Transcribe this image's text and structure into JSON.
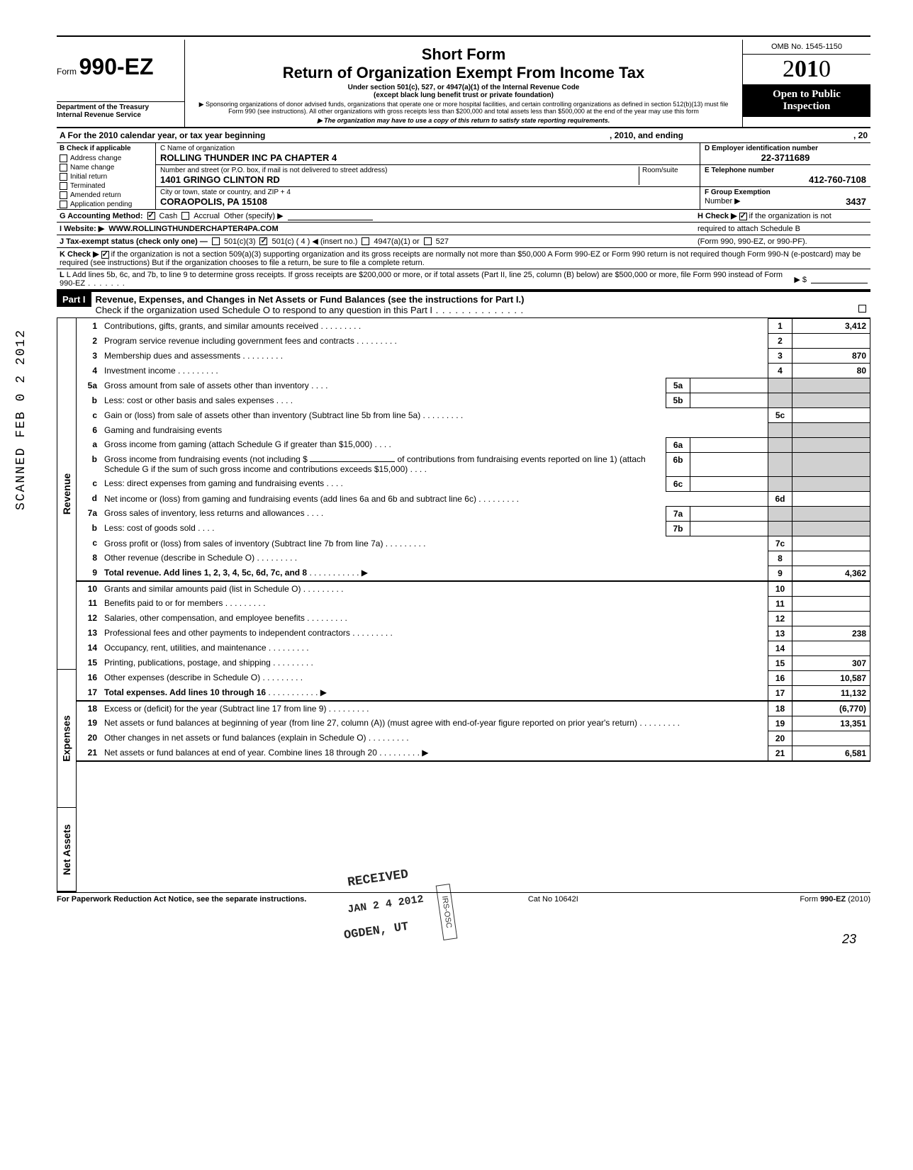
{
  "header": {
    "form_prefix": "Form",
    "form_number": "990-EZ",
    "dept1": "Department of the Treasury",
    "dept2": "Internal Revenue Service",
    "title1": "Short Form",
    "title2": "Return of Organization Exempt From Income Tax",
    "subtitle": "Under section 501(c), 527, or 4947(a)(1) of the Internal Revenue Code",
    "subtitle2": "(except black lung benefit trust or private foundation)",
    "note1": "▶ Sponsoring organizations of donor advised funds, organizations that operate one or more hospital facilities, and certain controlling organizations as defined in section 512(b)(13) must file Form 990 (see instructions). All other organizations with gross receipts less than $200,000 and total assets less than $500,000 at the end of the year may use this form",
    "note2": "▶ The organization may have to use a copy of this return to satisfy state reporting requirements.",
    "omb": "OMB No. 1545-1150",
    "year_prefix": "2",
    "year_bold": "01",
    "year_suffix": "0",
    "open_public1": "Open to Public",
    "open_public2": "Inspection"
  },
  "section_a": {
    "text_left": "A  For the 2010 calendar year, or tax year beginning",
    "text_mid": ", 2010, and ending",
    "text_right": ", 20"
  },
  "section_b": {
    "header": "B  Check if applicable",
    "items": [
      "Address change",
      "Name change",
      "Initial return",
      "Terminated",
      "Amended return",
      "Application pending"
    ]
  },
  "section_c": {
    "label": "C  Name of organization",
    "name": "ROLLING THUNDER INC PA CHAPTER 4",
    "addr_label": "Number and street (or P.O. box, if mail is not delivered to street address)",
    "room_label": "Room/suite",
    "addr": "1401 GRINGO CLINTON RD",
    "city_label": "City or town, state or country, and ZIP + 4",
    "city": "CORAOPOLIS, PA 15108"
  },
  "section_d": {
    "label": "D Employer identification number",
    "val": "22-3711689",
    "e_label": "E  Telephone number",
    "e_val": "412-760-7108",
    "f_label": "F  Group Exemption",
    "f_label2": "Number  ▶",
    "f_val": "3437"
  },
  "lines": {
    "g": "G  Accounting Method:",
    "g_cash": "Cash",
    "g_accrual": "Accrual",
    "g_other": "Other (specify) ▶",
    "h": "H  Check ▶",
    "h_text": "if the organization is not",
    "h_text2": "required to attach Schedule B",
    "h_text3": "(Form 990, 990-EZ, or 990-PF).",
    "i": "I   Website: ▶",
    "i_val": "WWW.ROLLINGTHUNDERCHAPTER4PA.COM",
    "j": "J  Tax-exempt status (check only one) —",
    "j_501c3": "501(c)(3)",
    "j_501c": "501(c) (  4  ) ◀ (insert no.)",
    "j_4947": "4947(a)(1) or",
    "j_527": "527",
    "k": "K  Check ▶",
    "k_text": "if the organization is not a section 509(a)(3) supporting organization and its gross receipts are normally not more than $50,000   A Form 990-EZ or Form 990 return is not required though Form 990-N (e-postcard) may be required (see instructions)  But if the organization chooses to file a return, be sure to file a complete return.",
    "l": "L  Add lines 5b, 6c, and 7b, to line 9 to determine gross receipts. If gross receipts are $200,000 or more, or if total assets (Part II, line 25, column (B) below) are $500,000 or more, file Form 990 instead of Form 990-EZ",
    "l_arrow": "▶  $"
  },
  "part1": {
    "label": "Part I",
    "title": "Revenue, Expenses, and Changes in Net Assets or Fund Balances (see the instructions for Part I.)",
    "check": "Check if the organization used Schedule O to respond to any question in this Part I"
  },
  "rows": [
    {
      "n": "1",
      "d": "Contributions, gifts, grants, and similar amounts received",
      "bn": "1",
      "amt": "3,412"
    },
    {
      "n": "2",
      "d": "Program service revenue including government fees and contracts",
      "bn": "2",
      "amt": ""
    },
    {
      "n": "3",
      "d": "Membership dues and assessments",
      "bn": "3",
      "amt": "870"
    },
    {
      "n": "4",
      "d": "Investment income",
      "bn": "4",
      "amt": "80"
    },
    {
      "n": "5a",
      "d": "Gross amount from sale of assets other than inventory",
      "in": "5a"
    },
    {
      "n": "b",
      "d": "Less: cost or other basis and sales expenses",
      "in": "5b"
    },
    {
      "n": "c",
      "d": "Gain or (loss) from sale of assets other than inventory (Subtract line 5b from line 5a)",
      "bn": "5c",
      "amt": ""
    },
    {
      "n": "6",
      "d": "Gaming and fundraising events"
    },
    {
      "n": "a",
      "d": "Gross income from gaming (attach Schedule G if greater than $15,000)",
      "in": "6a"
    },
    {
      "n": "b",
      "d": "Gross income from fundraising events (not including $",
      "d2": "of contributions from fundraising events reported on line 1) (attach Schedule G if the sum of such gross income and contributions exceeds $15,000)",
      "in": "6b"
    },
    {
      "n": "c",
      "d": "Less: direct expenses from gaming and fundraising events",
      "in": "6c"
    },
    {
      "n": "d",
      "d": "Net income or (loss) from gaming and fundraising events (add lines 6a and 6b and subtract line 6c)",
      "bn": "6d",
      "amt": ""
    },
    {
      "n": "7a",
      "d": "Gross sales of inventory, less returns and allowances",
      "in": "7a"
    },
    {
      "n": "b",
      "d": "Less: cost of goods sold",
      "in": "7b"
    },
    {
      "n": "c",
      "d": "Gross profit or (loss) from sales of inventory (Subtract line 7b from line 7a)",
      "bn": "7c",
      "amt": ""
    },
    {
      "n": "8",
      "d": "Other revenue (describe in Schedule O)",
      "bn": "8",
      "amt": ""
    },
    {
      "n": "9",
      "d": "Total revenue. Add lines 1, 2, 3, 4, 5c, 6d, 7c, and 8",
      "bn": "9",
      "amt": "4,362",
      "bold": true,
      "arrow": true
    },
    {
      "n": "10",
      "d": "Grants and similar amounts paid (list in Schedule O)",
      "bn": "10",
      "amt": ""
    },
    {
      "n": "11",
      "d": "Benefits paid to or for members",
      "bn": "11",
      "amt": ""
    },
    {
      "n": "12",
      "d": "Salaries, other compensation, and employee benefits",
      "bn": "12",
      "amt": ""
    },
    {
      "n": "13",
      "d": "Professional fees and other payments to independent contractors",
      "bn": "13",
      "amt": "238"
    },
    {
      "n": "14",
      "d": "Occupancy, rent, utilities, and maintenance",
      "bn": "14",
      "amt": ""
    },
    {
      "n": "15",
      "d": "Printing, publications, postage, and shipping",
      "bn": "15",
      "amt": "307"
    },
    {
      "n": "16",
      "d": "Other expenses (describe in Schedule O)",
      "bn": "16",
      "amt": "10,587"
    },
    {
      "n": "17",
      "d": "Total expenses. Add lines 10 through 16",
      "bn": "17",
      "amt": "11,132",
      "bold": true,
      "arrow": true
    },
    {
      "n": "18",
      "d": "Excess or (deficit) for the year (Subtract line 17 from line 9)",
      "bn": "18",
      "amt": "(6,770)"
    },
    {
      "n": "19",
      "d": "Net assets or fund balances at beginning of year (from line 27, column (A)) (must agree with end-of-year figure reported on prior year's return)",
      "bn": "19",
      "amt": "13,351"
    },
    {
      "n": "20",
      "d": "Other changes in net assets or fund balances (explain in Schedule O)",
      "bn": "20",
      "amt": ""
    },
    {
      "n": "21",
      "d": "Net assets or fund balances at end of year. Combine lines 18 through 20",
      "bn": "21",
      "amt": "6,581",
      "arrow": true
    }
  ],
  "side_labels": {
    "revenue": "Revenue",
    "expenses": "Expenses",
    "netassets": "Net Assets"
  },
  "footer": {
    "left": "For Paperwork Reduction Act Notice, see the separate instructions.",
    "mid": "Cat  No  10642I",
    "right": "Form 990-EZ (2010)"
  },
  "scanned": "SCANNED  FEB 0 2 2012",
  "stamps": {
    "received": "RECEIVED",
    "date": "JAN 2 4 2012",
    "ogden": "OGDEN, UT",
    "irs": "IRS-OSC"
  },
  "page": "23"
}
